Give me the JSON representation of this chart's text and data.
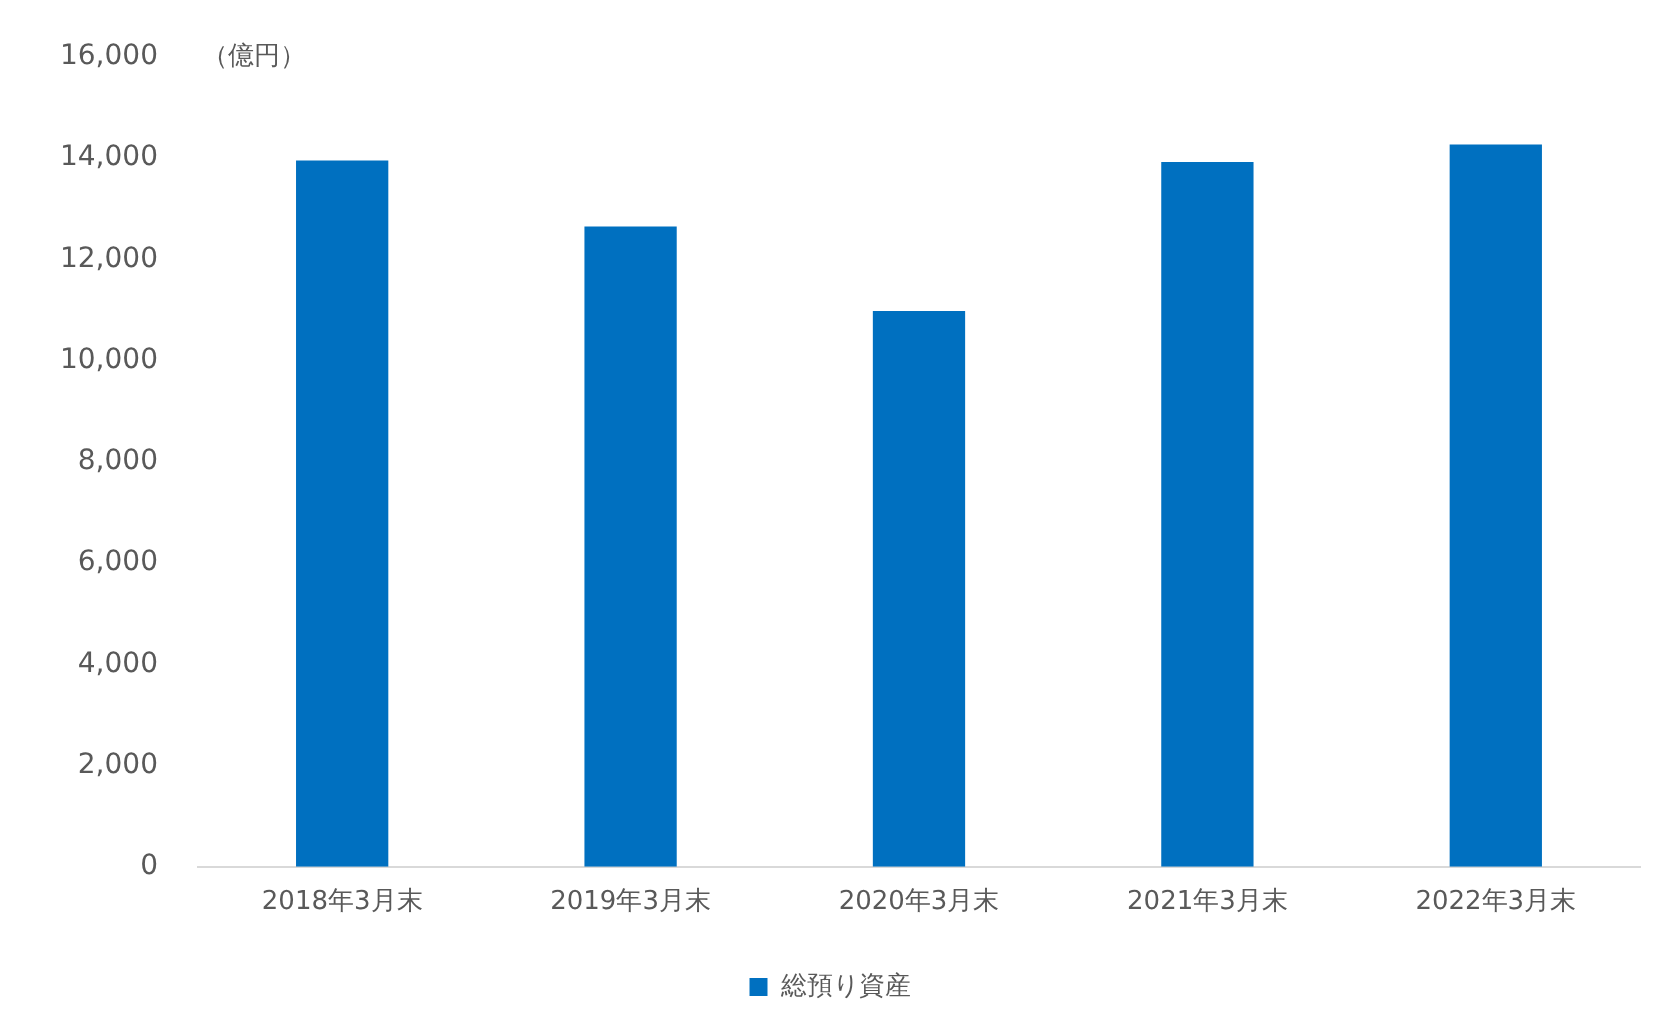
{
  "chart_data": {
    "type": "bar",
    "ylabel": "（億円）",
    "categories": [
      "2018年3月末",
      "2019年3月末",
      "2020年3月末",
      "2021年3月末",
      "2022年3月末"
    ],
    "series": [
      {
        "name": "総預り資産",
        "color": "#0070c0",
        "values": [
          13950,
          12650,
          10980,
          13920,
          14270
        ]
      }
    ],
    "ylim": [
      0,
      16000
    ],
    "yticks": [
      0,
      {
        "value": 2000,
        "label": "2,000"
      },
      {
        "value": 4000,
        "label": "4,000"
      },
      {
        "value": 6000,
        "label": "6,000"
      },
      {
        "value": 8000,
        "label": "8,000"
      },
      {
        "value": 10000,
        "label": "10,000"
      },
      {
        "value": 12000,
        "label": "12,000"
      },
      {
        "value": 14000,
        "label": "14,000"
      },
      {
        "value": 16000,
        "label": "16,000"
      }
    ],
    "grid": false,
    "legend": "bottom"
  }
}
